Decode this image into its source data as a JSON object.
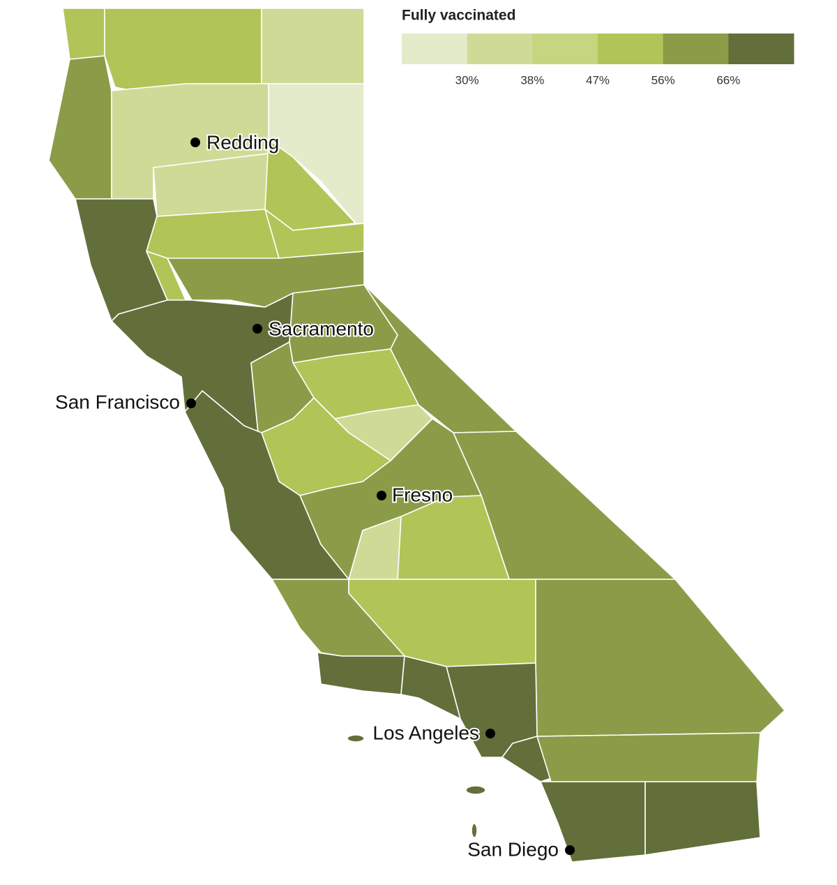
{
  "legend": {
    "title": "Fully vaccinated",
    "colors": [
      "#e4ebcb",
      "#cfda97",
      "#c5d580",
      "#b1c457",
      "#8b9c48",
      "#636f3a"
    ],
    "thresholds": [
      {
        "value": 30,
        "label": "30%"
      },
      {
        "value": 38,
        "label": "38%"
      },
      {
        "value": 47,
        "label": "47%"
      },
      {
        "value": 56,
        "label": "56%"
      },
      {
        "value": 66,
        "label": "66%"
      }
    ]
  },
  "cities": [
    "Redding",
    "Sacramento",
    "San Francisco",
    "Fresno",
    "Los Angeles",
    "San Diego"
  ]
}
